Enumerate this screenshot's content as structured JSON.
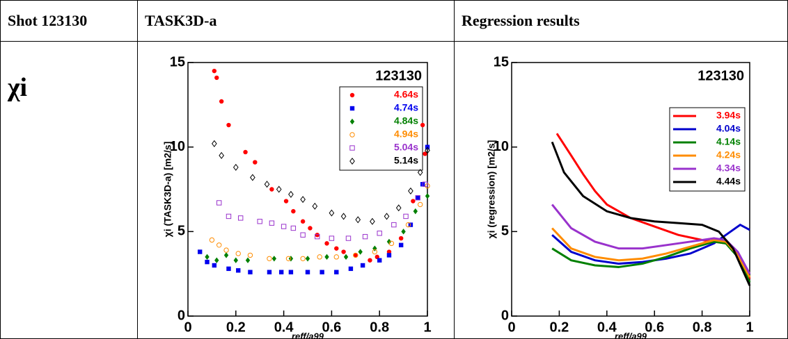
{
  "table": {
    "header": [
      "Shot 123130",
      "TASK3D-a",
      "Regression results"
    ],
    "row_label": "χi"
  },
  "chart_data": [
    {
      "type": "scatter",
      "title": "123130",
      "x_label": "reff/a99",
      "y_label": "χi (TASK3D-a) [m2/s]",
      "xlim": [
        0,
        1
      ],
      "ylim": [
        0,
        15
      ],
      "xticks": [
        0,
        0.2,
        0.4,
        0.6,
        0.8,
        1
      ],
      "yticks": [
        0,
        5,
        10,
        15
      ],
      "legend": "upper right",
      "series": [
        {
          "name": "4.64s",
          "color": "#ff0000",
          "marker": "circle",
          "x": [
            0.11,
            0.12,
            0.14,
            0.17,
            0.24,
            0.28,
            0.35,
            0.41,
            0.44,
            0.48,
            0.51,
            0.54,
            0.58,
            0.62,
            0.65,
            0.7,
            0.76,
            0.79,
            0.84,
            0.89,
            0.94,
            0.98,
            0.99
          ],
          "values": [
            14.5,
            14.1,
            12.7,
            11.3,
            9.7,
            9.1,
            7.5,
            6.8,
            6.2,
            5.6,
            5.2,
            4.8,
            4.3,
            4.0,
            3.8,
            3.6,
            3.3,
            3.5,
            3.8,
            4.6,
            6.8,
            11.3,
            9.6
          ]
        },
        {
          "name": "4.74s",
          "color": "#0000ee",
          "marker": "square",
          "x": [
            0.05,
            0.08,
            0.11,
            0.17,
            0.21,
            0.26,
            0.34,
            0.39,
            0.43,
            0.5,
            0.56,
            0.62,
            0.68,
            0.73,
            0.8,
            0.84,
            0.89,
            0.93,
            0.96,
            0.98,
            1.0
          ],
          "values": [
            3.8,
            3.2,
            3.0,
            2.8,
            2.7,
            2.6,
            2.6,
            2.6,
            2.6,
            2.6,
            2.6,
            2.6,
            2.8,
            3.0,
            3.3,
            3.6,
            4.2,
            5.4,
            7.0,
            7.8,
            10.0
          ]
        },
        {
          "name": "4.84s",
          "color": "#008000",
          "marker": "diamond",
          "x": [
            0.08,
            0.12,
            0.16,
            0.2,
            0.25,
            0.36,
            0.43,
            0.5,
            0.58,
            0.66,
            0.72,
            0.78,
            0.84,
            0.9,
            0.95,
            1.0
          ],
          "values": [
            3.5,
            3.3,
            3.6,
            3.3,
            3.3,
            3.4,
            3.4,
            3.4,
            3.5,
            3.5,
            3.8,
            4.0,
            4.4,
            5.0,
            6.2,
            7.1
          ]
        },
        {
          "name": "4.94s",
          "color": "#ff8c00",
          "marker": "circle-open",
          "x": [
            0.1,
            0.13,
            0.16,
            0.21,
            0.26,
            0.34,
            0.42,
            0.48,
            0.55,
            0.62,
            0.7,
            0.78,
            0.85,
            0.92,
            0.97,
            1.0
          ],
          "values": [
            4.5,
            4.2,
            3.9,
            3.7,
            3.6,
            3.4,
            3.4,
            3.4,
            3.5,
            3.5,
            3.6,
            3.8,
            4.3,
            5.4,
            6.6,
            7.7
          ]
        },
        {
          "name": "5.04s",
          "color": "#9932cc",
          "marker": "square-open",
          "x": [
            0.13,
            0.17,
            0.22,
            0.3,
            0.35,
            0.4,
            0.44,
            0.48,
            0.54,
            0.6,
            0.67,
            0.74,
            0.8,
            0.86,
            0.91,
            0.96,
            0.99
          ],
          "values": [
            6.7,
            5.9,
            5.8,
            5.6,
            5.5,
            5.3,
            5.2,
            4.8,
            4.7,
            4.6,
            4.6,
            4.7,
            4.9,
            5.4,
            5.9,
            7.0,
            7.8
          ]
        },
        {
          "name": "5.14s",
          "color": "#000000",
          "marker": "diamond-open",
          "x": [
            0.11,
            0.14,
            0.2,
            0.27,
            0.33,
            0.38,
            0.43,
            0.48,
            0.53,
            0.6,
            0.65,
            0.71,
            0.77,
            0.83,
            0.88,
            0.93,
            0.97,
            1.0
          ],
          "values": [
            10.2,
            9.5,
            8.8,
            8.2,
            7.8,
            7.5,
            7.2,
            6.9,
            6.5,
            6.1,
            5.9,
            5.7,
            5.6,
            5.9,
            6.4,
            7.4,
            8.5,
            9.8
          ]
        }
      ]
    },
    {
      "type": "line",
      "title": "123130",
      "x_label": "reff/a99",
      "y_label": "χi (regression) [m2/s]",
      "xlim": [
        0,
        1
      ],
      "ylim": [
        0,
        15
      ],
      "xticks": [
        0,
        0.2,
        0.4,
        0.6,
        0.8,
        1
      ],
      "yticks": [
        0,
        5,
        10,
        15
      ],
      "legend": "upper right",
      "series": [
        {
          "name": "3.94s",
          "color": "#ff0000",
          "x": [
            0.19,
            0.25,
            0.3,
            0.35,
            0.4,
            0.5,
            0.6,
            0.7,
            0.8,
            0.85,
            0.9,
            0.95,
            1.0
          ],
          "values": [
            10.8,
            9.5,
            8.4,
            7.4,
            6.6,
            5.8,
            5.3,
            4.8,
            4.5,
            4.4,
            4.3,
            3.7,
            2.2
          ]
        },
        {
          "name": "4.04s",
          "color": "#0000cc",
          "x": [
            0.17,
            0.25,
            0.35,
            0.45,
            0.55,
            0.65,
            0.75,
            0.85,
            0.92,
            0.96,
            1.0
          ],
          "values": [
            4.8,
            3.8,
            3.3,
            3.1,
            3.2,
            3.4,
            3.7,
            4.3,
            5.0,
            5.4,
            5.1
          ]
        },
        {
          "name": "4.14s",
          "color": "#008000",
          "x": [
            0.17,
            0.25,
            0.35,
            0.45,
            0.55,
            0.65,
            0.75,
            0.85,
            0.9,
            0.95,
            1.0
          ],
          "values": [
            4.0,
            3.3,
            3.0,
            2.9,
            3.1,
            3.5,
            4.0,
            4.4,
            4.3,
            3.5,
            2.0
          ]
        },
        {
          "name": "4.24s",
          "color": "#ff8c00",
          "x": [
            0.17,
            0.25,
            0.35,
            0.45,
            0.55,
            0.65,
            0.75,
            0.85,
            0.9,
            0.95,
            1.0
          ],
          "values": [
            5.2,
            4.0,
            3.5,
            3.3,
            3.4,
            3.7,
            4.1,
            4.5,
            4.4,
            3.6,
            2.3
          ]
        },
        {
          "name": "4.34s",
          "color": "#9932cc",
          "x": [
            0.17,
            0.25,
            0.35,
            0.45,
            0.55,
            0.65,
            0.75,
            0.85,
            0.9,
            0.95,
            1.0
          ],
          "values": [
            6.6,
            5.2,
            4.4,
            4.0,
            4.0,
            4.2,
            4.4,
            4.6,
            4.5,
            3.8,
            2.5
          ]
        },
        {
          "name": "4.44s",
          "color": "#000000",
          "x": [
            0.17,
            0.22,
            0.3,
            0.4,
            0.5,
            0.6,
            0.7,
            0.8,
            0.87,
            0.93,
            1.0
          ],
          "values": [
            10.3,
            8.5,
            7.1,
            6.2,
            5.8,
            5.6,
            5.5,
            5.4,
            5.0,
            4.0,
            1.8
          ]
        }
      ]
    }
  ]
}
